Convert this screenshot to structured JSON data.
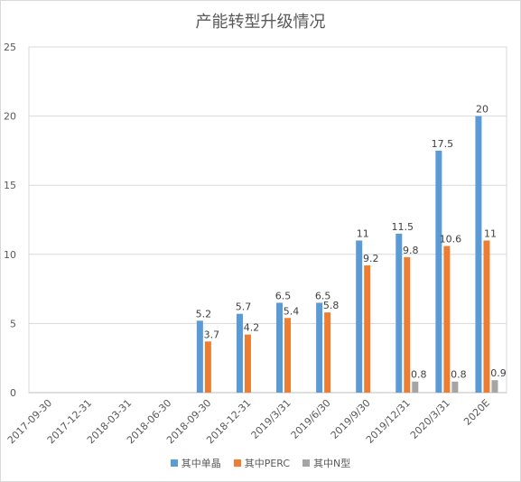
{
  "chart_data": {
    "type": "bar",
    "title": "产能转型升级情况",
    "categories": [
      "2017-09-30",
      "2017-12-31",
      "2018-03-31",
      "2018-06-30",
      "2018-09-30",
      "2018-12-31",
      "2019/3/31",
      "2019/6/30",
      "2019/9/30",
      "2019/12/31",
      "2020/3/31",
      "2020E"
    ],
    "series": [
      {
        "name": "其中单晶",
        "color": "#5b9bd5",
        "values": [
          null,
          null,
          null,
          null,
          5.2,
          5.7,
          6.5,
          6.5,
          11,
          11.5,
          17.5,
          20
        ]
      },
      {
        "name": "其中PERC",
        "color": "#ed7d31",
        "values": [
          null,
          null,
          null,
          null,
          3.7,
          4.2,
          5.4,
          5.8,
          9.2,
          9.8,
          10.6,
          11
        ]
      },
      {
        "name": "其中N型",
        "color": "#a5a5a5",
        "values": [
          null,
          null,
          null,
          null,
          null,
          null,
          null,
          null,
          null,
          0.8,
          0.8,
          0.9
        ]
      }
    ],
    "yticks": [
      0,
      5,
      10,
      15,
      20,
      25
    ],
    "ylim": [
      0,
      25
    ],
    "grid": true,
    "legend_position": "bottom",
    "data_labels": true
  }
}
